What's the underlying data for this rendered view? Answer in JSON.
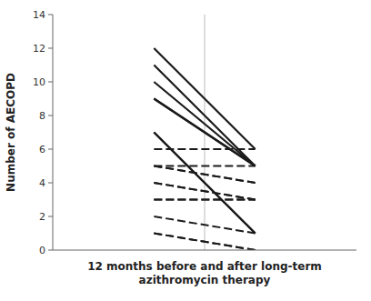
{
  "chart_data": {
    "type": "line",
    "x": [
      1,
      2
    ],
    "xlim": [
      0,
      3
    ],
    "xticks": [],
    "ylim": [
      0,
      14
    ],
    "yticks": [
      0,
      2,
      4,
      6,
      8,
      10,
      12,
      14
    ],
    "tick_labels": "y",
    "grid": false,
    "vline": 1.5,
    "x_label": "12 months before and after long-term\nazithromycin therapy",
    "y_label": "Number of AECOPD",
    "series": [
      {
        "color": "#1a1a1a",
        "line_style": "solid",
        "values": [
          12,
          6
        ]
      },
      {
        "color": "#1a1a1a",
        "line_style": "solid",
        "values": [
          11,
          5
        ]
      },
      {
        "color": "#1a1a1a",
        "line_style": "solid",
        "values": [
          10,
          5
        ]
      },
      {
        "color": "#1a1a1a",
        "line_style": "solid",
        "values": [
          9,
          5
        ]
      },
      {
        "color": "#1a1a1a",
        "line_style": "solid",
        "values": [
          9,
          5
        ]
      },
      {
        "color": "#1a1a1a",
        "line_style": "solid",
        "values": [
          7,
          1
        ]
      },
      {
        "color": "#1a1a1a",
        "line_style": "solid",
        "values": [
          7,
          1
        ]
      },
      {
        "color": "#1a1a1a",
        "line_style": "dashed",
        "values": [
          6,
          6
        ]
      },
      {
        "color": "#1a1a1a",
        "line_style": "dashed",
        "values": [
          5,
          5
        ]
      },
      {
        "color": "#1a1a1a",
        "line_style": "dashed",
        "values": [
          5,
          4
        ]
      },
      {
        "color": "#1a1a1a",
        "line_style": "dashed",
        "values": [
          5,
          4
        ]
      },
      {
        "color": "#1a1a1a",
        "line_style": "dashed",
        "values": [
          4,
          3
        ]
      },
      {
        "color": "#1a1a1a",
        "line_style": "dashed",
        "values": [
          4,
          3
        ]
      },
      {
        "color": "#1a1a1a",
        "line_style": "dashed",
        "values": [
          3,
          3
        ]
      },
      {
        "color": "#1a1a1a",
        "line_style": "dashed",
        "values": [
          3,
          3
        ]
      },
      {
        "color": "#1a1a1a",
        "line_style": "dashed",
        "values": [
          2,
          1
        ]
      },
      {
        "color": "#1a1a1a",
        "line_style": "dashed",
        "values": [
          1,
          0
        ]
      },
      {
        "color": "#1a1a1a",
        "line_style": "dashed",
        "values": [
          1,
          0
        ]
      }
    ]
  }
}
